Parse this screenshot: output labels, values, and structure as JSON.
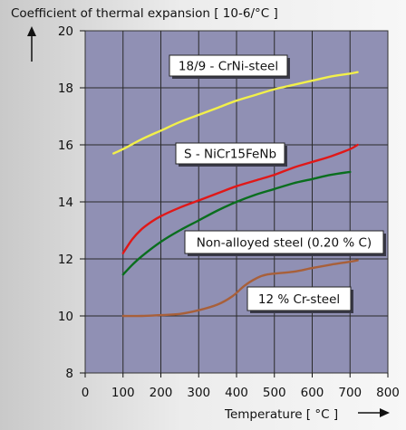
{
  "chart_data": {
    "type": "line",
    "ylabel": "Coefficient of thermal expansion [ 10-6/°C ]",
    "xlabel": "Temperature [ °C ]",
    "xlim": [
      0,
      800
    ],
    "ylim": [
      8,
      20
    ],
    "xticks": [
      0,
      100,
      200,
      300,
      400,
      500,
      600,
      700,
      800
    ],
    "yticks": [
      8,
      10,
      12,
      14,
      16,
      18,
      20
    ],
    "grid": true,
    "plot_background": "#9090b4",
    "series": [
      {
        "name": "18/9 - CrNi-steel",
        "color": "#f2f04a",
        "points": [
          [
            75,
            15.7
          ],
          [
            100,
            15.85
          ],
          [
            150,
            16.2
          ],
          [
            200,
            16.5
          ],
          [
            250,
            16.8
          ],
          [
            300,
            17.05
          ],
          [
            350,
            17.3
          ],
          [
            400,
            17.55
          ],
          [
            450,
            17.75
          ],
          [
            500,
            17.95
          ],
          [
            550,
            18.1
          ],
          [
            600,
            18.25
          ],
          [
            650,
            18.4
          ],
          [
            700,
            18.5
          ],
          [
            720,
            18.55
          ]
        ]
      },
      {
        "name": "S - NiCr15FeNb",
        "color": "#e01818",
        "points": [
          [
            100,
            12.2
          ],
          [
            125,
            12.7
          ],
          [
            150,
            13.05
          ],
          [
            175,
            13.3
          ],
          [
            200,
            13.5
          ],
          [
            250,
            13.8
          ],
          [
            300,
            14.05
          ],
          [
            350,
            14.3
          ],
          [
            400,
            14.55
          ],
          [
            450,
            14.75
          ],
          [
            500,
            14.95
          ],
          [
            550,
            15.2
          ],
          [
            600,
            15.4
          ],
          [
            650,
            15.6
          ],
          [
            700,
            15.85
          ],
          [
            720,
            16.0
          ]
        ]
      },
      {
        "name": "Non-alloyed steel (0.20 % C)",
        "color": "#0a6e1e",
        "points": [
          [
            100,
            11.45
          ],
          [
            125,
            11.8
          ],
          [
            150,
            12.1
          ],
          [
            200,
            12.6
          ],
          [
            250,
            13.0
          ],
          [
            300,
            13.35
          ],
          [
            350,
            13.7
          ],
          [
            400,
            14.0
          ],
          [
            450,
            14.25
          ],
          [
            500,
            14.45
          ],
          [
            550,
            14.65
          ],
          [
            600,
            14.8
          ],
          [
            650,
            14.95
          ],
          [
            700,
            15.05
          ]
        ]
      },
      {
        "name": "12 % Cr-steel",
        "color": "#a8603a",
        "points": [
          [
            100,
            10.0
          ],
          [
            150,
            10.0
          ],
          [
            200,
            10.03
          ],
          [
            250,
            10.07
          ],
          [
            300,
            10.2
          ],
          [
            350,
            10.4
          ],
          [
            390,
            10.7
          ],
          [
            420,
            11.05
          ],
          [
            450,
            11.3
          ],
          [
            480,
            11.45
          ],
          [
            550,
            11.55
          ],
          [
            600,
            11.68
          ],
          [
            650,
            11.8
          ],
          [
            700,
            11.9
          ],
          [
            720,
            11.95
          ]
        ]
      }
    ],
    "annotations": [
      {
        "text": "18/9 - CrNi-steel",
        "series": 0
      },
      {
        "text": "S - NiCr15FeNb",
        "series": 1
      },
      {
        "text": "Non-alloyed steel (0.20 % C)",
        "series": 2
      },
      {
        "text": "12 % Cr-steel",
        "series": 3
      }
    ]
  }
}
